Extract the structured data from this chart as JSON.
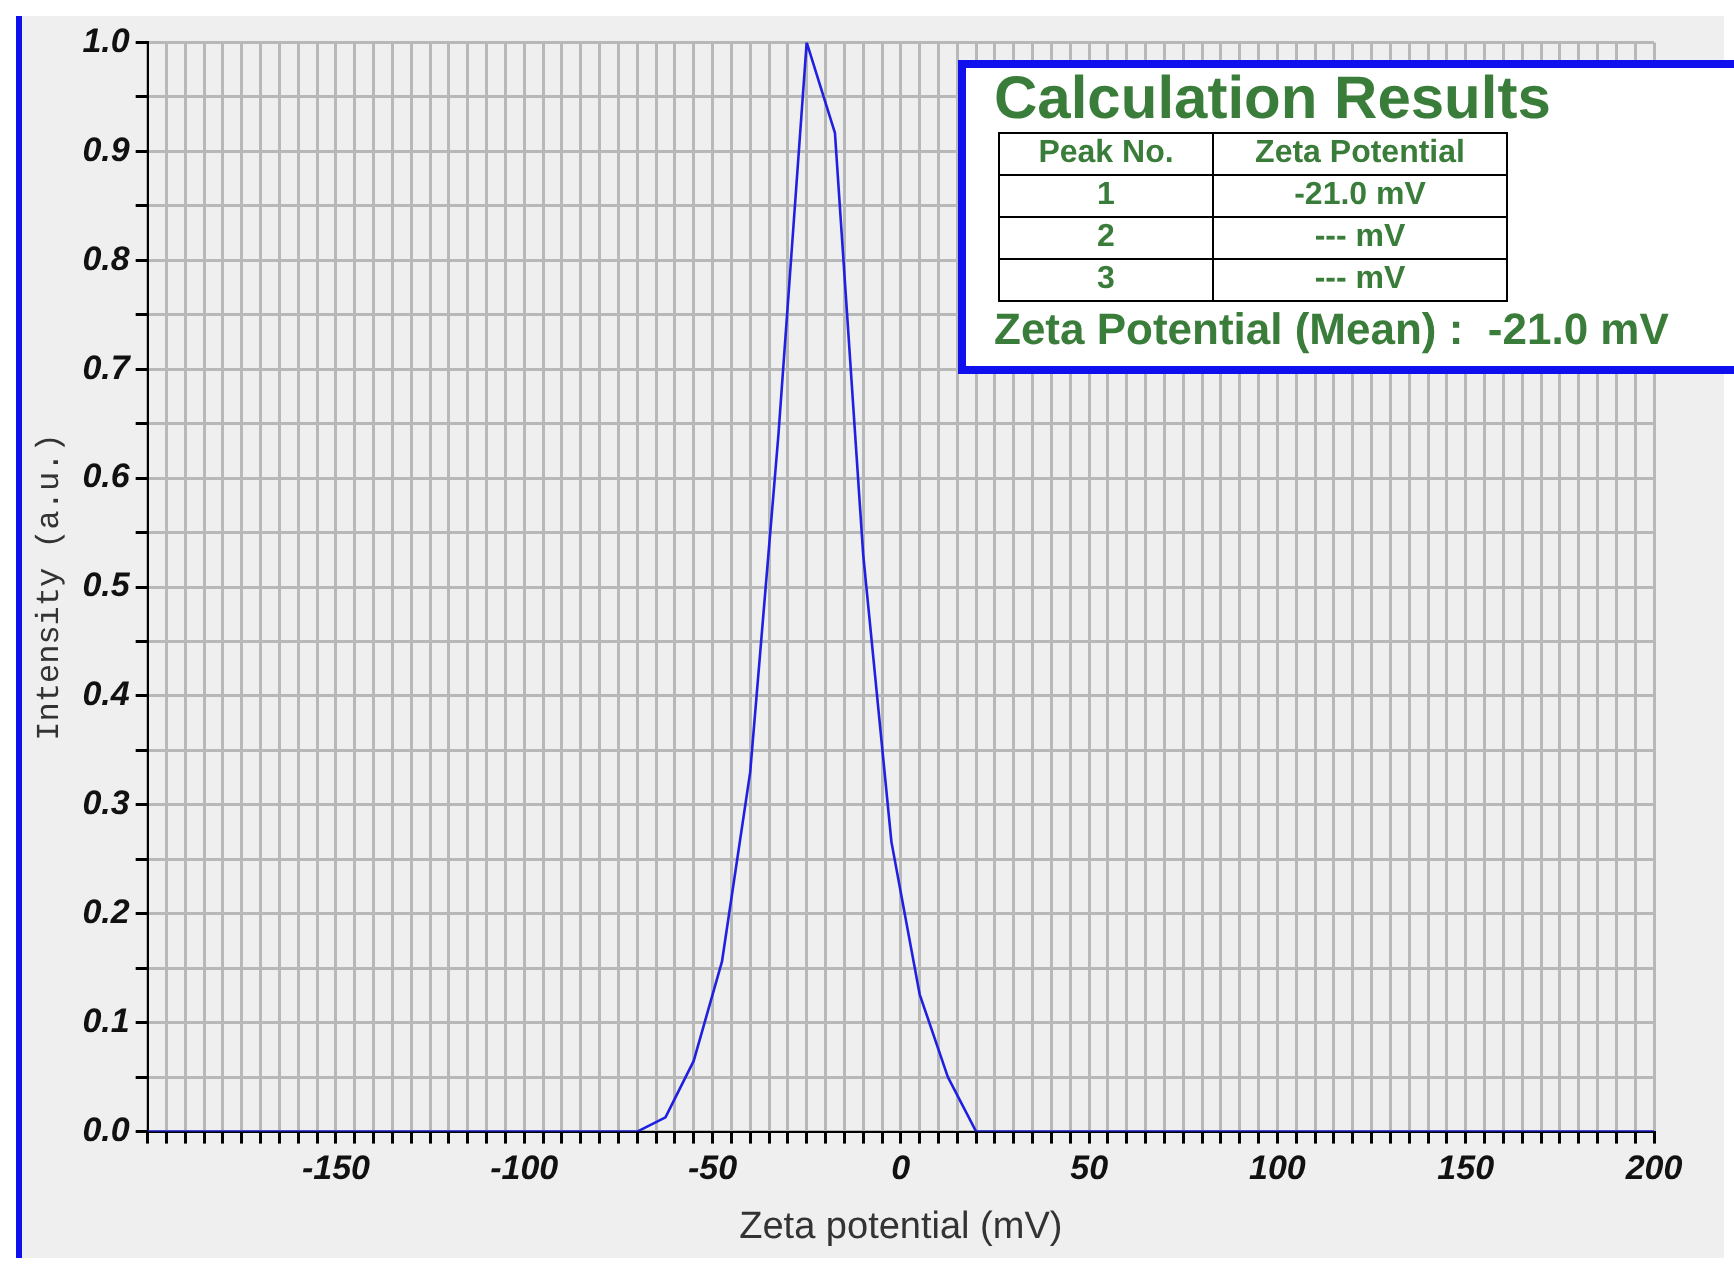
{
  "chart_data": {
    "type": "line",
    "xlabel": "Zeta potential (mV)",
    "ylabel": "Intensity (a.u.)",
    "series": [
      {
        "color": "#2020e0",
        "x": [
          -200,
          -70,
          -62.5,
          -55,
          -47.5,
          -40,
          -32.5,
          -25,
          -17.5,
          -10,
          -2.5,
          5,
          12.5,
          20,
          200
        ],
        "values": [
          0,
          0,
          0.013,
          0.065,
          0.156,
          0.33,
          0.64,
          1.0,
          0.917,
          0.53,
          0.266,
          0.126,
          0.05,
          0,
          0
        ]
      }
    ],
    "xlim": [
      -200,
      200
    ],
    "ylim": [
      0,
      1
    ],
    "xticks": [
      {
        "value": -200,
        "label": null
      },
      {
        "value": -195,
        "label": null
      },
      {
        "value": -190,
        "label": null
      },
      {
        "value": -185,
        "label": null
      },
      {
        "value": -180,
        "label": null
      },
      {
        "value": -175,
        "label": null
      },
      {
        "value": -170,
        "label": null
      },
      {
        "value": -165,
        "label": null
      },
      {
        "value": -160,
        "label": null
      },
      {
        "value": -155,
        "label": null
      },
      -150,
      {
        "value": -145,
        "label": null
      },
      {
        "value": -140,
        "label": null
      },
      {
        "value": -135,
        "label": null
      },
      {
        "value": -130,
        "label": null
      },
      {
        "value": -125,
        "label": null
      },
      {
        "value": -120,
        "label": null
      },
      {
        "value": -115,
        "label": null
      },
      {
        "value": -110,
        "label": null
      },
      {
        "value": -105,
        "label": null
      },
      -100,
      {
        "value": -95,
        "label": null
      },
      {
        "value": -90,
        "label": null
      },
      {
        "value": -85,
        "label": null
      },
      {
        "value": -80,
        "label": null
      },
      {
        "value": -75,
        "label": null
      },
      {
        "value": -70,
        "label": null
      },
      {
        "value": -65,
        "label": null
      },
      {
        "value": -60,
        "label": null
      },
      {
        "value": -55,
        "label": null
      },
      -50,
      {
        "value": -45,
        "label": null
      },
      {
        "value": -40,
        "label": null
      },
      {
        "value": -35,
        "label": null
      },
      {
        "value": -30,
        "label": null
      },
      {
        "value": -25,
        "label": null
      },
      {
        "value": -20,
        "label": null
      },
      {
        "value": -15,
        "label": null
      },
      {
        "value": -10,
        "label": null
      },
      {
        "value": -5,
        "label": null
      },
      0,
      {
        "value": 5,
        "label": null
      },
      {
        "value": 10,
        "label": null
      },
      {
        "value": 15,
        "label": null
      },
      {
        "value": 20,
        "label": null
      },
      {
        "value": 25,
        "label": null
      },
      {
        "value": 30,
        "label": null
      },
      {
        "value": 35,
        "label": null
      },
      {
        "value": 40,
        "label": null
      },
      {
        "value": 45,
        "label": null
      },
      50,
      {
        "value": 55,
        "label": null
      },
      {
        "value": 60,
        "label": null
      },
      {
        "value": 65,
        "label": null
      },
      {
        "value": 70,
        "label": null
      },
      {
        "value": 75,
        "label": null
      },
      {
        "value": 80,
        "label": null
      },
      {
        "value": 85,
        "label": null
      },
      {
        "value": 90,
        "label": null
      },
      {
        "value": 95,
        "label": null
      },
      100,
      {
        "value": 105,
        "label": null
      },
      {
        "value": 110,
        "label": null
      },
      {
        "value": 115,
        "label": null
      },
      {
        "value": 120,
        "label": null
      },
      {
        "value": 125,
        "label": null
      },
      {
        "value": 130,
        "label": null
      },
      {
        "value": 135,
        "label": null
      },
      {
        "value": 140,
        "label": null
      },
      {
        "value": 145,
        "label": null
      },
      150,
      {
        "value": 155,
        "label": null
      },
      {
        "value": 160,
        "label": null
      },
      {
        "value": 165,
        "label": null
      },
      {
        "value": 170,
        "label": null
      },
      {
        "value": 175,
        "label": null
      },
      {
        "value": 180,
        "label": null
      },
      {
        "value": 185,
        "label": null
      },
      {
        "value": 190,
        "label": null
      },
      {
        "value": 195,
        "label": null
      },
      200
    ],
    "yticks": [
      {
        "value": 0,
        "label": "0.0"
      },
      {
        "value": 0.05,
        "label": null
      },
      {
        "value": 0.1,
        "label": "0.1"
      },
      {
        "value": 0.15,
        "label": null
      },
      {
        "value": 0.2,
        "label": "0.2"
      },
      {
        "value": 0.25,
        "label": null
      },
      {
        "value": 0.3,
        "label": "0.3"
      },
      {
        "value": 0.35,
        "label": null
      },
      {
        "value": 0.4,
        "label": "0.4"
      },
      {
        "value": 0.45,
        "label": null
      },
      {
        "value": 0.5,
        "label": "0.5"
      },
      {
        "value": 0.55,
        "label": null
      },
      {
        "value": 0.6,
        "label": "0.6"
      },
      {
        "value": 0.65,
        "label": null
      },
      {
        "value": 0.7,
        "label": "0.7"
      },
      {
        "value": 0.75,
        "label": null
      },
      {
        "value": 0.8,
        "label": "0.8"
      },
      {
        "value": 0.85,
        "label": null
      },
      {
        "value": 0.9,
        "label": "0.9"
      },
      {
        "value": 0.95,
        "label": null
      },
      {
        "value": 1.0,
        "label": "1.0"
      }
    ],
    "grid": true,
    "annotations": [
      "Calculation Results",
      "Peak No.",
      "Zeta Potential",
      "1",
      "-21.0 mV",
      "2",
      "--- mV",
      "3",
      "--- mV",
      "Zeta Potential (Mean) :  -21.0 mV"
    ]
  }
}
